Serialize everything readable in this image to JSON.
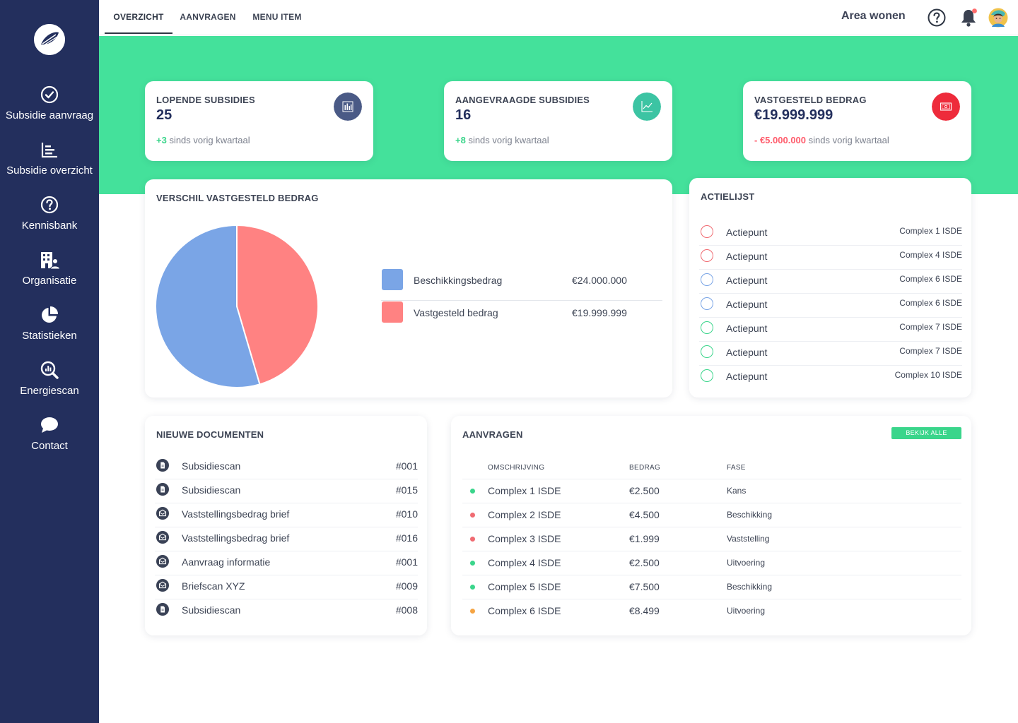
{
  "sidebar": {
    "items": [
      {
        "label": "Subsidie aanvraag",
        "icon": "check-circle-icon"
      },
      {
        "label": "Subsidie overzicht",
        "icon": "bar-list-icon"
      },
      {
        "label": "Kennisbank",
        "icon": "question-circle-icon"
      },
      {
        "label": "Organisatie",
        "icon": "building-user-icon"
      },
      {
        "label": "Statistieken",
        "icon": "pie-chart-icon"
      },
      {
        "label": "Energiescan",
        "icon": "search-chart-icon"
      },
      {
        "label": "Contact",
        "icon": "chat-bubble-icon"
      }
    ]
  },
  "topbar": {
    "tabs": [
      {
        "label": "OVERZICHT",
        "active": true
      },
      {
        "label": "AANVRAGEN",
        "active": false
      },
      {
        "label": "MENU ITEM",
        "active": false
      }
    ],
    "area": "Area wonen",
    "icons": [
      "help-icon",
      "bell-icon",
      "avatar"
    ]
  },
  "stats": [
    {
      "title": "LOPENDE SUBSIDIES",
      "value": "25",
      "delta": "+3",
      "suffix": " sinds vorig kwartaal",
      "badge_color": "#4a5a86",
      "icon": "bar-chart-icon"
    },
    {
      "title": "AANGEVRAAGDE SUBSIDIES",
      "value": "16",
      "delta": "+8",
      "suffix": " sinds vorig kwartaal",
      "badge_color": "#3cc4a3",
      "icon": "line-chart-icon"
    },
    {
      "title": "VASTGESTELD BEDRAG",
      "value": "€19.999.999",
      "delta": "- €5.000.000",
      "suffix": " sinds vorig kwartaal",
      "badge_color": "#ee2b3b",
      "icon": "money-icon"
    }
  ],
  "pie": {
    "title": "VERSCHIL VASTGESTELD BEDRAG",
    "legend": [
      {
        "label": "Beschikkingsbedrag",
        "value": "€24.000.000",
        "color": "#7aa5e6"
      },
      {
        "label": "Vastgesteld bedrag",
        "value": "€19.999.999",
        "color": "#ff8282"
      }
    ]
  },
  "chart_data": {
    "type": "pie",
    "categories": [
      "Beschikkingsbedrag",
      "Vastgesteld bedrag"
    ],
    "values": [
      24000000,
      19999999
    ],
    "colors": [
      "#7aa5e6",
      "#ff8282"
    ],
    "title": "VERSCHIL VASTGESTELD BEDRAG"
  },
  "actions": {
    "title": "ACTIELIJST",
    "items": [
      {
        "label": "Actiepunt",
        "tag": "Complex 1 ISDE",
        "color": "#f06b72"
      },
      {
        "label": "Actiepunt",
        "tag": "Complex 4 ISDE",
        "color": "#f06b72"
      },
      {
        "label": "Actiepunt",
        "tag": "Complex 6 ISDE",
        "color": "#7aa5e6"
      },
      {
        "label": "Actiepunt",
        "tag": "Complex 6 ISDE",
        "color": "#7aa5e6"
      },
      {
        "label": "Actiepunt",
        "tag": "Complex 7 ISDE",
        "color": "#3ad58b"
      },
      {
        "label": "Actiepunt",
        "tag": "Complex 7 ISDE",
        "color": "#3ad58b"
      },
      {
        "label": "Actiepunt",
        "tag": "Complex 10 ISDE",
        "color": "#3ad58b"
      }
    ]
  },
  "documents": {
    "title": "NIEUWE DOCUMENTEN",
    "items": [
      {
        "label": "Subsidiescan",
        "num": "#001",
        "icon": "document-icon"
      },
      {
        "label": "Subsidiescan",
        "num": "#015",
        "icon": "document-icon"
      },
      {
        "label": "Vaststellingsbedrag brief",
        "num": "#010",
        "icon": "envelope-icon"
      },
      {
        "label": "Vaststellingsbedrag brief",
        "num": "#016",
        "icon": "envelope-icon"
      },
      {
        "label": "Aanvraag informatie",
        "num": "#001",
        "icon": "envelope-icon"
      },
      {
        "label": "Briefscan XYZ",
        "num": "#009",
        "icon": "envelope-icon"
      },
      {
        "label": "Subsidiescan",
        "num": "#008",
        "icon": "document-icon"
      }
    ]
  },
  "requests": {
    "title": "AANVRAGEN",
    "button": "BEKIJK ALLE",
    "headers": {
      "desc": "OMSCHRIJVING",
      "amount": "BEDRAG",
      "phase": "FASE"
    },
    "rows": [
      {
        "desc": "Complex 1 ISDE",
        "amount": "€2.500",
        "phase": "Kans",
        "color": "#3ad58b"
      },
      {
        "desc": "Complex 2 ISDE",
        "amount": "€4.500",
        "phase": "Beschikking",
        "color": "#f06b72"
      },
      {
        "desc": "Complex 3 ISDE",
        "amount": "€1.999",
        "phase": "Vaststelling",
        "color": "#f06b72"
      },
      {
        "desc": "Complex 4 ISDE",
        "amount": "€2.500",
        "phase": "Uitvoering",
        "color": "#3ad58b"
      },
      {
        "desc": "Complex 5 ISDE",
        "amount": "€7.500",
        "phase": "Beschikking",
        "color": "#3ad58b"
      },
      {
        "desc": "Complex 6 ISDE",
        "amount": "€8.499",
        "phase": "Uitvoering",
        "color": "#f5a443"
      }
    ]
  },
  "colors": {
    "sidebar": "#232f5d",
    "band": "#44e19b",
    "accent": "#3ad58b",
    "negative": "#ff5c6c"
  }
}
